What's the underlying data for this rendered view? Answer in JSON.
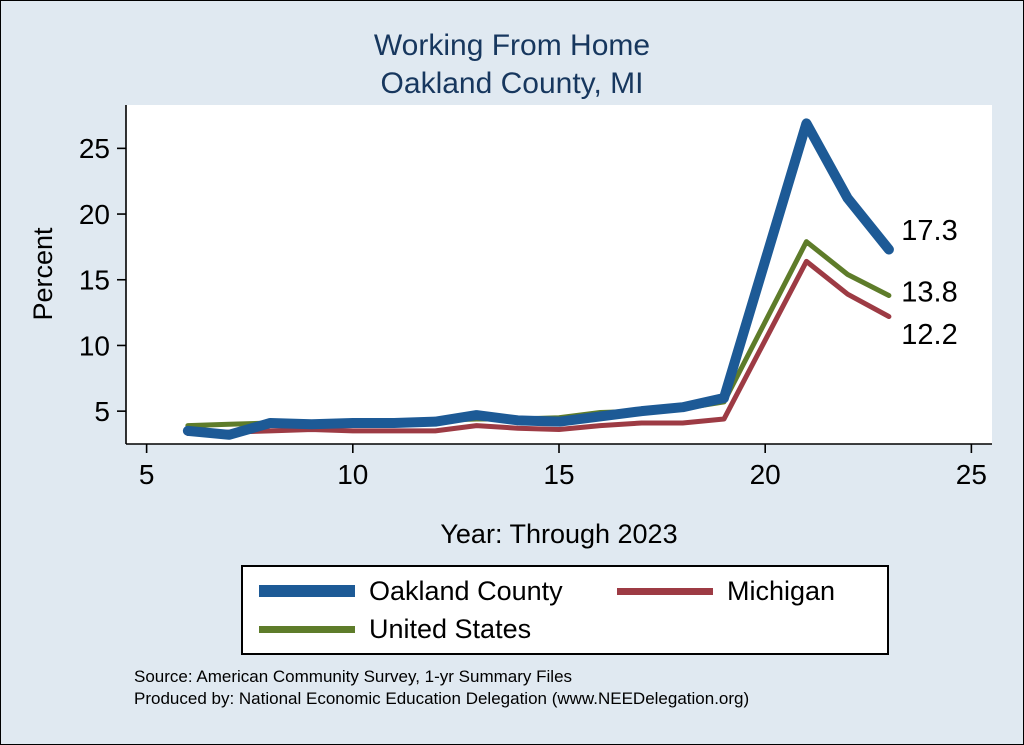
{
  "title": {
    "line1": "Working From Home",
    "line2": "Oakland County, MI"
  },
  "chart_data": {
    "type": "line",
    "title": "Working From Home — Oakland County, MI",
    "xlabel": "Year: Through 2023",
    "ylabel": "Percent",
    "xlim": [
      4.5,
      25.5
    ],
    "ylim": [
      2.5,
      28.3
    ],
    "x_ticks": [
      5,
      10,
      15,
      20,
      25
    ],
    "y_ticks": [
      5,
      10,
      15,
      20,
      25
    ],
    "grid": false,
    "legend_position": "bottom",
    "x": [
      6,
      7,
      8,
      9,
      10,
      11,
      12,
      13,
      14,
      15,
      16,
      17,
      18,
      19,
      21,
      22,
      23
    ],
    "series": [
      {
        "name": "Oakland County",
        "color": "#1d5a96",
        "line_width": 10,
        "values": [
          3.5,
          3.2,
          4.1,
          4.0,
          4.1,
          4.1,
          4.2,
          4.7,
          4.3,
          4.2,
          4.6,
          5.0,
          5.3,
          6.0,
          26.9,
          21.2,
          17.3
        ]
      },
      {
        "name": "Michigan",
        "color": "#9d3b44",
        "line_width": 5,
        "values": [
          3.3,
          3.4,
          3.5,
          3.6,
          3.5,
          3.5,
          3.5,
          3.9,
          3.7,
          3.6,
          3.9,
          4.1,
          4.1,
          4.4,
          16.4,
          13.9,
          12.2
        ]
      },
      {
        "name": "United States",
        "color": "#5e7c2a",
        "line_width": 5,
        "values": [
          3.9,
          4.0,
          4.1,
          4.1,
          4.2,
          4.2,
          4.3,
          4.4,
          4.4,
          4.5,
          4.9,
          5.0,
          5.2,
          5.7,
          17.9,
          15.4,
          13.8
        ]
      }
    ],
    "annotations": [
      {
        "text": "17.3",
        "x": 23.3,
        "y": 18.8
      },
      {
        "text": "13.8",
        "x": 23.3,
        "y": 14.1
      },
      {
        "text": "12.2",
        "x": 23.3,
        "y": 10.9
      }
    ]
  },
  "footer": {
    "line1": "Source: American Community Survey, 1-yr Summary Files",
    "line2": "Produced by: National Economic Education Delegation (www.NEEDelegation.org)"
  }
}
